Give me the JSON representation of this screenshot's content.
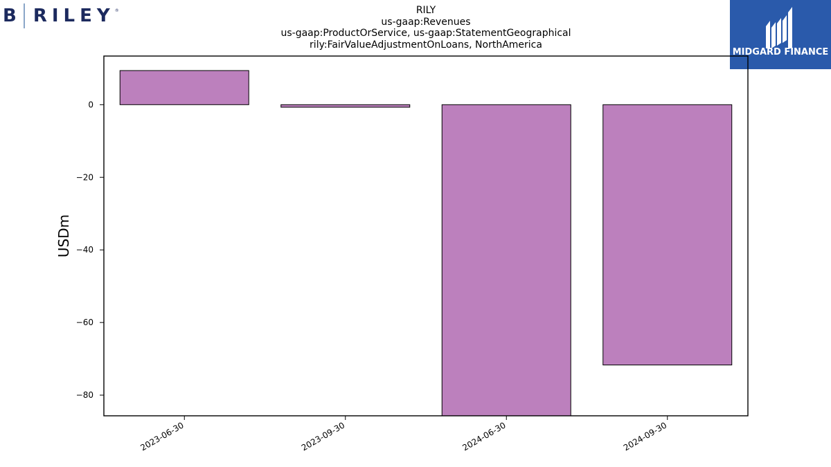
{
  "brand": {
    "left_logo_text": "B RILEY",
    "right_logo_text": "MIDGARD FINANCE"
  },
  "colors": {
    "bar_fill": "#bc80bd",
    "bar_edge": "#000000",
    "right_logo_bg": "#2a5aab",
    "left_logo_text": "#1c2a5e"
  },
  "chart_data": {
    "type": "bar",
    "title_lines": [
      "RILY",
      "us-gaap:Revenues",
      "us-gaap:ProductOrService, us-gaap:StatementGeographical",
      "rily:FairValueAdjustmentOnLoans, NorthAmerica"
    ],
    "xlabel": "",
    "ylabel": "USDm",
    "categories": [
      "2023-06-30",
      "2023-09-30",
      "2024-06-30",
      "2024-09-30"
    ],
    "values": [
      9.4,
      -0.7,
      -86.7,
      -71.7
    ],
    "ylim": [
      -85.7,
      13.4
    ],
    "yticks": [
      0,
      -20,
      -40,
      -60,
      -80
    ],
    "ytick_labels": [
      "0",
      "−20",
      "−40",
      "−60",
      "−80"
    ],
    "grid": false,
    "legend": "none"
  }
}
